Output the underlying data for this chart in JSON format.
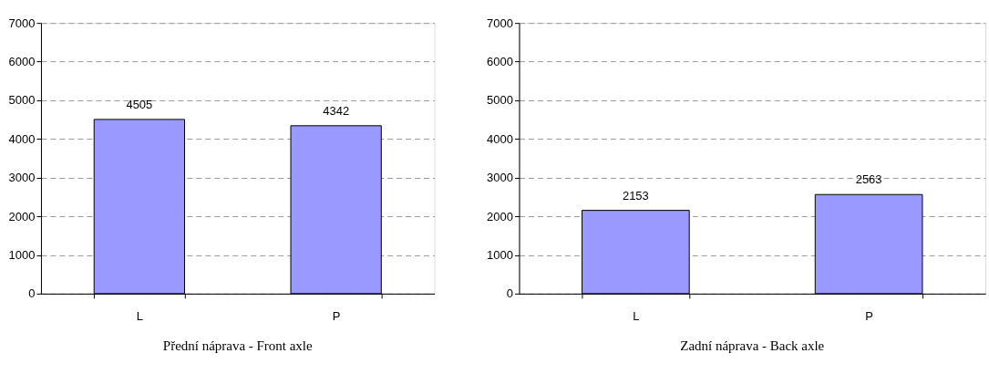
{
  "chart_data": [
    {
      "type": "bar",
      "title": "Přední náprava - Front axle",
      "categories": [
        "L",
        "P"
      ],
      "values": [
        4505,
        4342
      ],
      "color": "#9999ff",
      "ylim": [
        0,
        7000
      ],
      "yticks": [
        0,
        1000,
        2000,
        3000,
        4000,
        5000,
        6000,
        7000
      ],
      "grid": "y",
      "data_labels": true
    },
    {
      "type": "bar",
      "title": "Zadní náprava - Back axle",
      "categories": [
        "L",
        "P"
      ],
      "values": [
        2153,
        2563
      ],
      "color": "#9999ff",
      "ylim": [
        0,
        7000
      ],
      "yticks": [
        0,
        1000,
        2000,
        3000,
        4000,
        5000,
        6000,
        7000
      ],
      "grid": "y",
      "data_labels": true
    }
  ]
}
